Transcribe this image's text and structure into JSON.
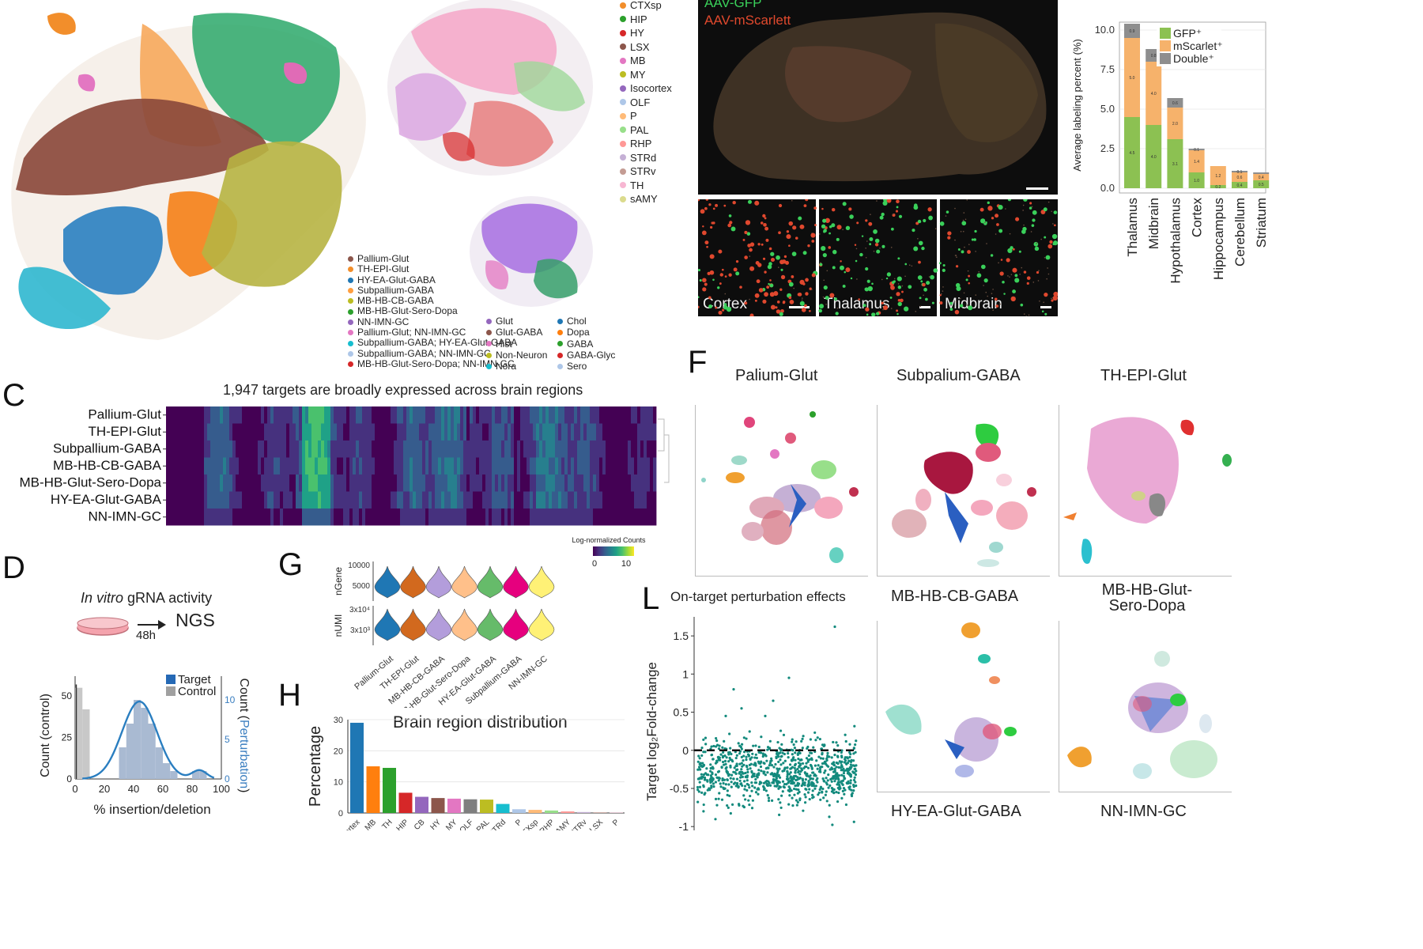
{
  "panel_labels": {
    "C": "C",
    "D": "D",
    "F": "F",
    "G": "G",
    "H": "H",
    "L": "L"
  },
  "legend_top_regions": {
    "items": [
      {
        "label": "CTXsp",
        "color": "#f28e2b"
      },
      {
        "label": "HIP",
        "color": "#2ca02c"
      },
      {
        "label": "HY",
        "color": "#d62728"
      },
      {
        "label": "LSX",
        "color": "#8c564b"
      },
      {
        "label": "MB",
        "color": "#e377c2"
      },
      {
        "label": "MY",
        "color": "#bcbd22"
      },
      {
        "label": "Isocortex",
        "color": "#9467bd"
      },
      {
        "label": "OLF",
        "color": "#aec7e8"
      },
      {
        "label": "P",
        "color": "#ffbb78"
      },
      {
        "label": "PAL",
        "color": "#98df8a"
      },
      {
        "label": "RHP",
        "color": "#ff9896"
      },
      {
        "label": "STRd",
        "color": "#c5b0d5"
      },
      {
        "label": "STRv",
        "color": "#c49c94"
      },
      {
        "label": "TH",
        "color": "#f7b6d2"
      },
      {
        "label": "sAMY",
        "color": "#dbdb8d"
      }
    ]
  },
  "legend_class": {
    "items": [
      {
        "label": "Pallium-Glut",
        "color": "#8c564b"
      },
      {
        "label": "TH-EPI-Glut",
        "color": "#f28e2b"
      },
      {
        "label": "HY-EA-Glut-GABA",
        "color": "#1f77b4"
      },
      {
        "label": "Subpallium-GABA",
        "color": "#ff9f40"
      },
      {
        "label": "MB-HB-CB-GABA",
        "color": "#bcbd22"
      },
      {
        "label": "MB-HB-Glut-Sero-Dopa",
        "color": "#2ca02c"
      },
      {
        "label": "NN-IMN-GC",
        "color": "#9467bd"
      },
      {
        "label": "Pallium-Glut; NN-IMN-GC",
        "color": "#e377c2"
      },
      {
        "label": "Subpallium-GABA; HY-EA-Glut-GABA",
        "color": "#17becf"
      },
      {
        "label": "Subpallium-GABA; NN-IMN-GC",
        "color": "#aec7e8"
      },
      {
        "label": "MB-HB-Glut-Sero-Dopa; NN-IMN-GC",
        "color": "#d62728"
      }
    ]
  },
  "legend_nt": {
    "col1": [
      {
        "label": "Glut",
        "color": "#9467bd"
      },
      {
        "label": "Glut-GABA",
        "color": "#8c564b"
      },
      {
        "label": "Hist",
        "color": "#e377c2"
      },
      {
        "label": "Non-Neuron",
        "color": "#bcbd22"
      },
      {
        "label": "Nora",
        "color": "#17becf"
      }
    ],
    "col2": [
      {
        "label": "Chol",
        "color": "#1f77b4"
      },
      {
        "label": "Dopa",
        "color": "#ff7f0e"
      },
      {
        "label": "GABA",
        "color": "#2ca02c"
      },
      {
        "label": "GABA-Glyc",
        "color": "#d62728"
      },
      {
        "label": "Sero",
        "color": "#aec7e8"
      }
    ]
  },
  "micro": {
    "legend_gfp": "AAV-GFP",
    "legend_mscarlett": "AAV-mScarlett",
    "insets": [
      "Cortex",
      "Thalamus",
      "Midbrain"
    ]
  },
  "labeling_chart": {
    "chart_data": {
      "type": "bar",
      "stacked": true,
      "ylabel": "Average labeling percent (%)",
      "ylim": [
        0,
        10.5
      ],
      "yticks": [
        "0.0",
        "2.5",
        "5.0",
        "7.5",
        "10.0"
      ],
      "categories": [
        "Thalamus",
        "Midbrain",
        "Hypothalamus",
        "Cortex",
        "Hippocampus",
        "Cerebellum",
        "Striatum"
      ],
      "series": [
        {
          "name": "GFP⁺",
          "color": "#8cc152",
          "values": [
            4.5,
            4.0,
            3.1,
            1.0,
            0.2,
            0.4,
            0.5
          ]
        },
        {
          "name": "mScarlet⁺",
          "color": "#f6b26b",
          "values": [
            5.0,
            4.0,
            2.0,
            1.4,
            1.2,
            0.6,
            0.4
          ]
        },
        {
          "name": "Double⁺",
          "color": "#8e8e8e",
          "values": [
            0.9,
            0.8,
            0.6,
            0.1,
            0.0,
            0.1,
            0.1
          ]
        }
      ],
      "data_labels": [
        [
          "4.5",
          "5.0",
          "0.9"
        ],
        [
          "4.0",
          "4.0",
          "0.8"
        ],
        [
          "3.1",
          "2.0",
          "0.6"
        ],
        [
          "1.0",
          "1.4",
          "0.1"
        ],
        [
          "0.2",
          "1.2",
          ""
        ],
        [
          "0.4",
          "0.6",
          "0.1"
        ],
        [
          "0.5",
          "0.4",
          ""
        ]
      ]
    }
  },
  "heatmap": {
    "title": "1,947 targets are broadly expressed across brain regions",
    "rows": [
      "Pallium-Glut",
      "TH-EPI-Glut",
      "Subpallium-GABA",
      "MB-HB-CB-GABA",
      "MB-HB-Glut-Sero-Dopa",
      "HY-EA-Glut-GABA",
      "NN-IMN-GC"
    ],
    "colorbar_label": "Log-normalized Counts",
    "colorbar_min": "0",
    "colorbar_max": "10",
    "chart_data": {
      "type": "heatmap",
      "rows": [
        "Pallium-Glut",
        "TH-EPI-Glut",
        "Subpallium-GABA",
        "MB-HB-CB-GABA",
        "MB-HB-Glut-Sero-Dopa",
        "HY-EA-Glut-GABA",
        "NN-IMN-GC"
      ],
      "value_range": [
        0,
        10
      ],
      "n_columns": 1947
    }
  },
  "panel_d": {
    "in_vitro": "In vitro",
    "gRNA_activity": "gRNA activity",
    "ngs": "NGS",
    "time": "48h",
    "chart_data": {
      "type": "bar",
      "xlabel": "% insertion/deletion",
      "ylabel_left": "Count (control)",
      "ylabel_right_prefix": "Count (",
      "ylabel_right_word": "Perturbation",
      "ylabel_right_suffix": ")",
      "legend": [
        "Target",
        "Control"
      ],
      "xticks": [
        "0",
        "20",
        "40",
        "60",
        "80",
        "100"
      ],
      "yticks_left": [
        "0",
        "25",
        "50"
      ],
      "yticks_right": [
        "0",
        "5",
        "10"
      ],
      "xlim": [
        0,
        100
      ],
      "control_bins_x": [
        0,
        5
      ],
      "control_counts": [
        55,
        42
      ],
      "target_bins_x": [
        30,
        35,
        40,
        45,
        50,
        55,
        60,
        65,
        80,
        85
      ],
      "target_counts": [
        4,
        7,
        10,
        9,
        7,
        4,
        2,
        1,
        1,
        1
      ]
    }
  },
  "panel_g": {
    "chart_data": {
      "type": "violin",
      "categories": [
        "Pallium-Glut",
        "TH-EPI-Glut",
        "MB-HB-CB-GABA",
        "MB-HB-Glut-Sero-Dopa",
        "HY-EA-Glut-GABA",
        "Subpallium-GABA",
        "NN-IMN-GC"
      ],
      "colors": [
        "#1f77b4",
        "#d2691e",
        "#b39ddb",
        "#ffc08a",
        "#66bb6a",
        "#e6007e",
        "#fff176"
      ],
      "metrics": [
        {
          "name": "nGene",
          "yticks": [
            "10000",
            "5000"
          ]
        },
        {
          "name": "nUMI",
          "yticks": [
            "3x10⁴",
            "3x10³"
          ]
        }
      ]
    }
  },
  "panel_h": {
    "title": "Brain region distribution",
    "chart_data": {
      "type": "bar",
      "ylabel": "Percentage",
      "ylim": [
        0,
        30
      ],
      "yticks": [
        "0",
        "10",
        "20",
        "30"
      ],
      "values": [
        29,
        15,
        14.5,
        6.5,
        5.2,
        4.8,
        4.6,
        4.4,
        4.3,
        2.9,
        1.2,
        1.0,
        0.8,
        0.5,
        0.3,
        0.2,
        0.1
      ],
      "colors": [
        "#1f77b4",
        "#ff7f0e",
        "#2ca02c",
        "#d62728",
        "#9467bd",
        "#8c564b",
        "#e377c2",
        "#7f7f7f",
        "#bcbd22",
        "#17becf",
        "#aec7e8",
        "#ffbb78",
        "#98df8a",
        "#ff9896",
        "#c5b0d5",
        "#c49c94",
        "#f7b6d2"
      ],
      "categories": [
        "Isocortex",
        "MB",
        "TH",
        "HIP",
        "CB",
        "HY",
        "MY",
        "OLF",
        "PAL",
        "STRd",
        "P",
        "CTXsp",
        "RHP",
        "sAMY",
        "STRv",
        "LSX",
        "P"
      ]
    }
  },
  "panel_f": {
    "titles": [
      "Palium-Glut",
      "Subpalium-GABA",
      "TH-EPI-Glut",
      "MB-HB-CB-GABA",
      "MB-HB-Glut-",
      "Sero-Dopa",
      "HY-EA-Glut-GABA",
      "NN-IMN-GC"
    ]
  },
  "panel_l": {
    "title": "On-target perturbation effects",
    "chart_data": {
      "type": "scatter",
      "ylabel": "Target log₂Fold-change",
      "yticks": [
        "1.5",
        "1",
        "0.5",
        "0",
        "-0.5",
        "-1"
      ],
      "ylim": [
        -1.05,
        1.75
      ],
      "point_color": "#138a7d",
      "reference_line_y": 0
    }
  }
}
